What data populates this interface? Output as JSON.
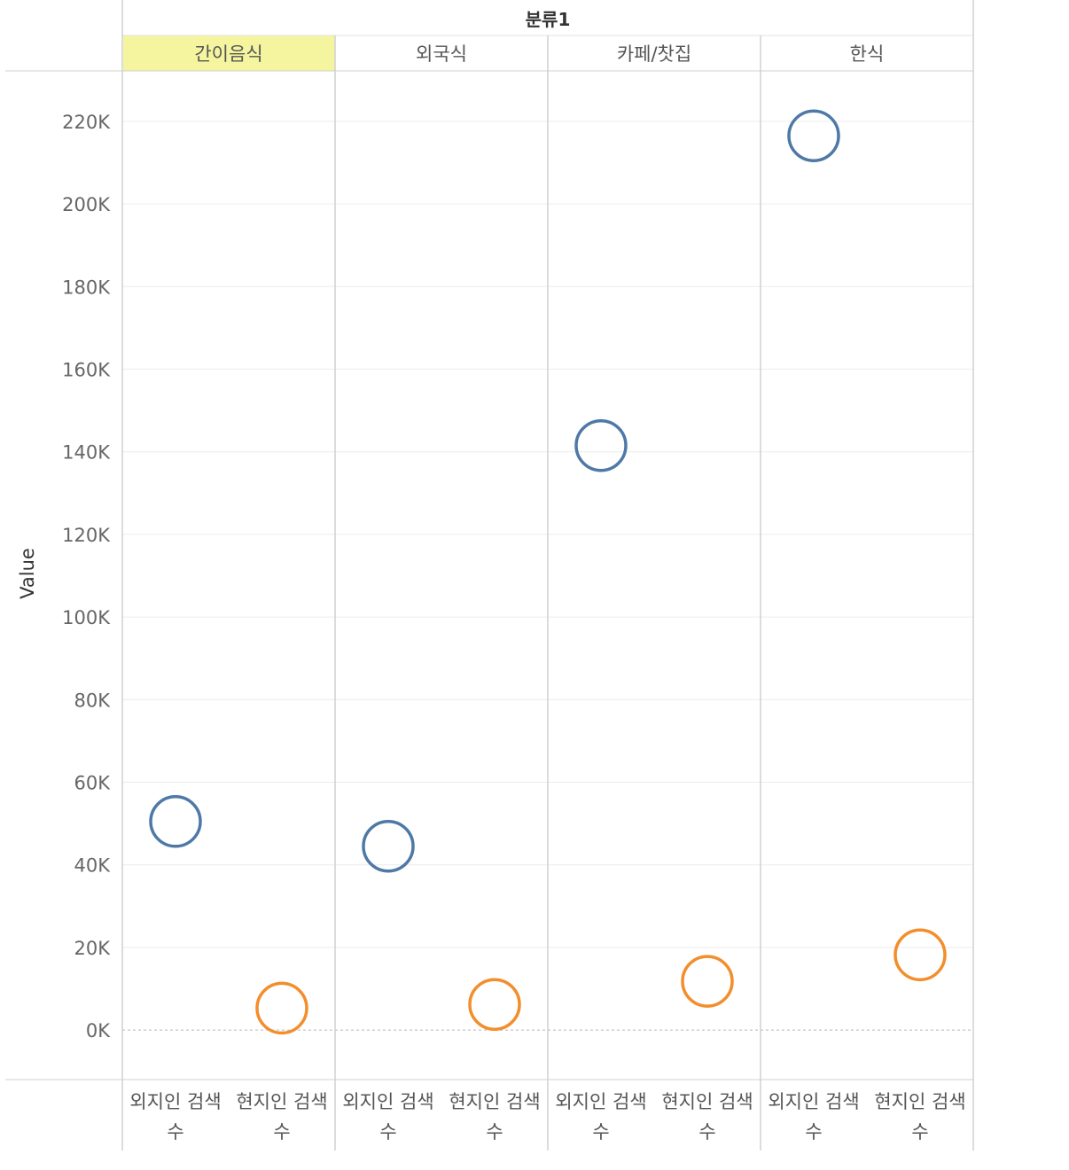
{
  "chart_data": {
    "type": "scatter",
    "column_header": "분류1",
    "ylabel": "Value",
    "ylim": [
      -12000,
      232000
    ],
    "yticks": [
      0,
      20000,
      40000,
      60000,
      80000,
      100000,
      120000,
      140000,
      160000,
      180000,
      200000,
      220000
    ],
    "ytick_labels": [
      "0K",
      "20K",
      "40K",
      "60K",
      "80K",
      "100K",
      "120K",
      "140K",
      "160K",
      "180K",
      "200K",
      "220K"
    ],
    "grid": true,
    "zero_line": "dashed",
    "highlighted_panel": "간이음식",
    "highlight_color": "#f5f5a0",
    "colors": {
      "외지인 검색 수": "#4e79a7",
      "현지인 검색 수": "#f28e2b"
    },
    "panels": [
      {
        "category": "간이음식",
        "points": [
          {
            "measure": "외지인 검색 수",
            "value": 50500
          },
          {
            "measure": "현지인 검색 수",
            "value": 5300
          }
        ]
      },
      {
        "category": "외국식",
        "points": [
          {
            "measure": "외지인 검색 수",
            "value": 44500
          },
          {
            "measure": "현지인 검색 수",
            "value": 6200
          }
        ]
      },
      {
        "category": "카페/찻집",
        "points": [
          {
            "measure": "외지인 검색 수",
            "value": 141500
          },
          {
            "measure": "현지인 검색 수",
            "value": 11800
          }
        ]
      },
      {
        "category": "한식",
        "points": [
          {
            "measure": "외지인 검색 수",
            "value": 216500
          },
          {
            "measure": "현지인 검색 수",
            "value": 18200
          }
        ]
      }
    ],
    "x_labels": [
      {
        "line1": "외지인 검색",
        "line2": "수"
      },
      {
        "line1": "현지인 검색",
        "line2": "수"
      }
    ]
  }
}
